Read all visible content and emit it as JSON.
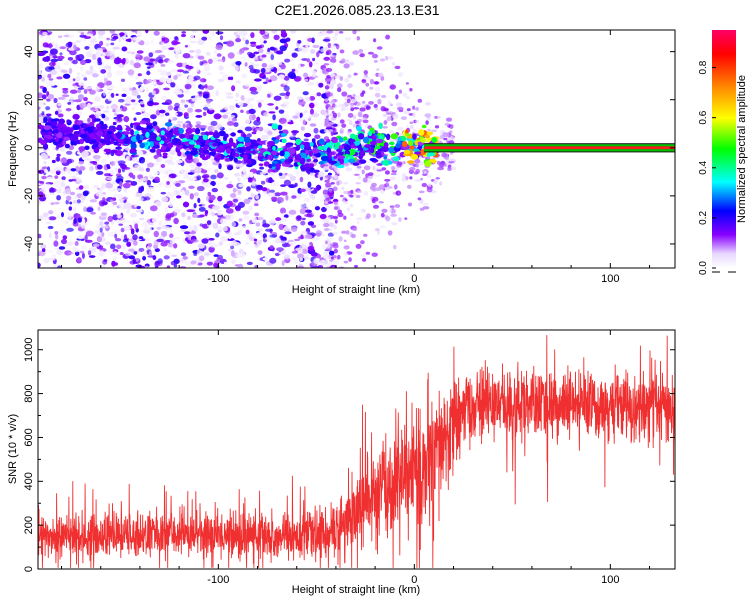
{
  "title": "C2E1.2026.085.23.13.E31",
  "chart_data": [
    {
      "type": "heatmap",
      "xlabel": "Height of straight line (km)",
      "ylabel": "Frequency (Hz)",
      "xlim": [
        -192,
        133
      ],
      "ylim": [
        -50,
        49
      ],
      "xticks": [
        -100,
        0,
        100
      ],
      "xtick_labels": [
        "-100",
        "0",
        "100"
      ],
      "yticks": [
        -40,
        -20,
        0,
        20,
        40
      ],
      "ytick_labels": [
        "-40",
        "-20",
        "0",
        "20",
        "40"
      ],
      "description_hidden": true,
      "noise_region_x": [
        -192,
        -45
      ],
      "transition_x": [
        -45,
        20
      ],
      "signal_band": {
        "x_start": 5,
        "x_end": 133,
        "center_hz": 0,
        "halfwidth_hz": 1.5
      },
      "ridge_points": [
        {
          "x": -190,
          "y": 7
        },
        {
          "x": -160,
          "y": 6
        },
        {
          "x": -140,
          "y": 4
        },
        {
          "x": -120,
          "y": 2
        },
        {
          "x": -100,
          "y": 0
        },
        {
          "x": -80,
          "y": -2
        },
        {
          "x": -60,
          "y": -3
        },
        {
          "x": -40,
          "y": -1
        },
        {
          "x": -20,
          "y": 1
        },
        {
          "x": 0,
          "y": 1
        },
        {
          "x": 10,
          "y": 0
        }
      ],
      "colorbar": {
        "label": "Normalized spectral amplitude",
        "range": [
          0.0,
          0.95
        ],
        "ticks": [
          0.0,
          0.2,
          0.4,
          0.6,
          0.8
        ],
        "tick_labels": [
          "0.0",
          "0.2",
          "0.4",
          "0.6",
          "0.8"
        ],
        "colors": [
          "#ffffff",
          "#8800ff",
          "#0000ff",
          "#00ffff",
          "#00ff00",
          "#ffff00",
          "#ff8800",
          "#ff0000",
          "#ff00aa"
        ]
      }
    },
    {
      "type": "line",
      "xlabel": "Height of straight line (km)",
      "ylabel": "SNR (10 * v/v)",
      "xlim": [
        -192,
        133
      ],
      "ylim": [
        0,
        1090
      ],
      "xticks": [
        -100,
        0,
        100
      ],
      "xtick_labels": [
        "-100",
        "0",
        "100"
      ],
      "yticks": [
        0,
        200,
        400,
        600,
        800,
        1000
      ],
      "ytick_labels": [
        "0",
        "200",
        "400",
        "600",
        "800",
        "1000"
      ],
      "color": "#f03030",
      "trend": [
        {
          "x": -192,
          "y": 150
        },
        {
          "x": -150,
          "y": 150
        },
        {
          "x": -120,
          "y": 160
        },
        {
          "x": -80,
          "y": 155
        },
        {
          "x": -50,
          "y": 150
        },
        {
          "x": -40,
          "y": 180
        },
        {
          "x": -30,
          "y": 260
        },
        {
          "x": -20,
          "y": 330
        },
        {
          "x": -10,
          "y": 400
        },
        {
          "x": 0,
          "y": 430
        },
        {
          "x": 10,
          "y": 500
        },
        {
          "x": 18,
          "y": 620
        },
        {
          "x": 25,
          "y": 720
        },
        {
          "x": 40,
          "y": 760
        },
        {
          "x": 70,
          "y": 740
        },
        {
          "x": 100,
          "y": 740
        },
        {
          "x": 133,
          "y": 730
        }
      ],
      "spread": [
        {
          "x": -192,
          "y": 90
        },
        {
          "x": -50,
          "y": 100
        },
        {
          "x": -30,
          "y": 160
        },
        {
          "x": -10,
          "y": 250
        },
        {
          "x": 10,
          "y": 280
        },
        {
          "x": 25,
          "y": 150
        },
        {
          "x": 133,
          "y": 140
        }
      ]
    }
  ]
}
